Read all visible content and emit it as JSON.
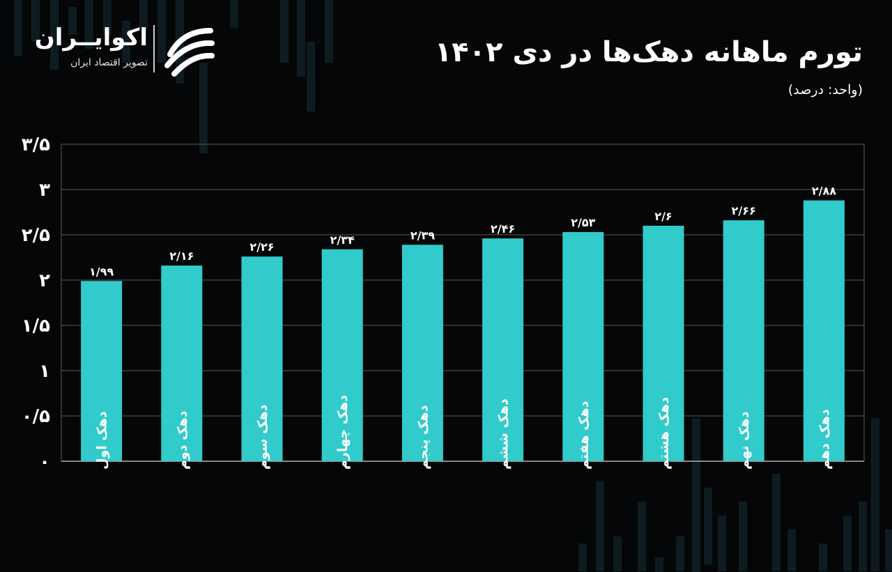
{
  "header": {
    "title": "تورم ماهانه دهک‌ها در دی ۱۴۰۲",
    "unit": "(واحد: درصد)"
  },
  "logo": {
    "name": "اکوایــران",
    "tagline": "تصویر اقتصاد ایران",
    "icon": "swirl-logo-icon"
  },
  "colors": {
    "background": "#050607",
    "bar": "#31cbcb",
    "grid": "#5a5a5a",
    "text": "#ffffff"
  },
  "chart_data": {
    "type": "bar",
    "categories": [
      "دهک اول",
      "دهک دوم",
      "دهک سوم",
      "دهک چهارم",
      "دهک پنجم",
      "دهک ششم",
      "دهک هفتم",
      "دهک هشتم",
      "دهک نهم",
      "دهک دهم"
    ],
    "values": [
      1.99,
      2.16,
      2.26,
      2.34,
      2.39,
      2.46,
      2.53,
      2.6,
      2.66,
      2.88
    ],
    "value_labels": [
      "۱/۹۹",
      "۲/۱۶",
      "۲/۲۶",
      "۲/۳۴",
      "۲/۳۹",
      "۲/۴۶",
      "۲/۵۳",
      "۲/۶",
      "۲/۶۶",
      "۲/۸۸"
    ],
    "y_ticks": [
      0,
      0.5,
      1,
      1.5,
      2,
      2.5,
      3,
      3.5
    ],
    "y_tick_labels": [
      "۰",
      "۰/۵",
      "۱",
      "۱/۵",
      "۲",
      "۲/۵",
      "۳",
      "۳/۵"
    ],
    "ylim": [
      0,
      3.5
    ],
    "grid": true,
    "title": "تورم ماهانه دهک‌ها در دی ۱۴۰۲",
    "ylabel": "",
    "xlabel": ""
  }
}
